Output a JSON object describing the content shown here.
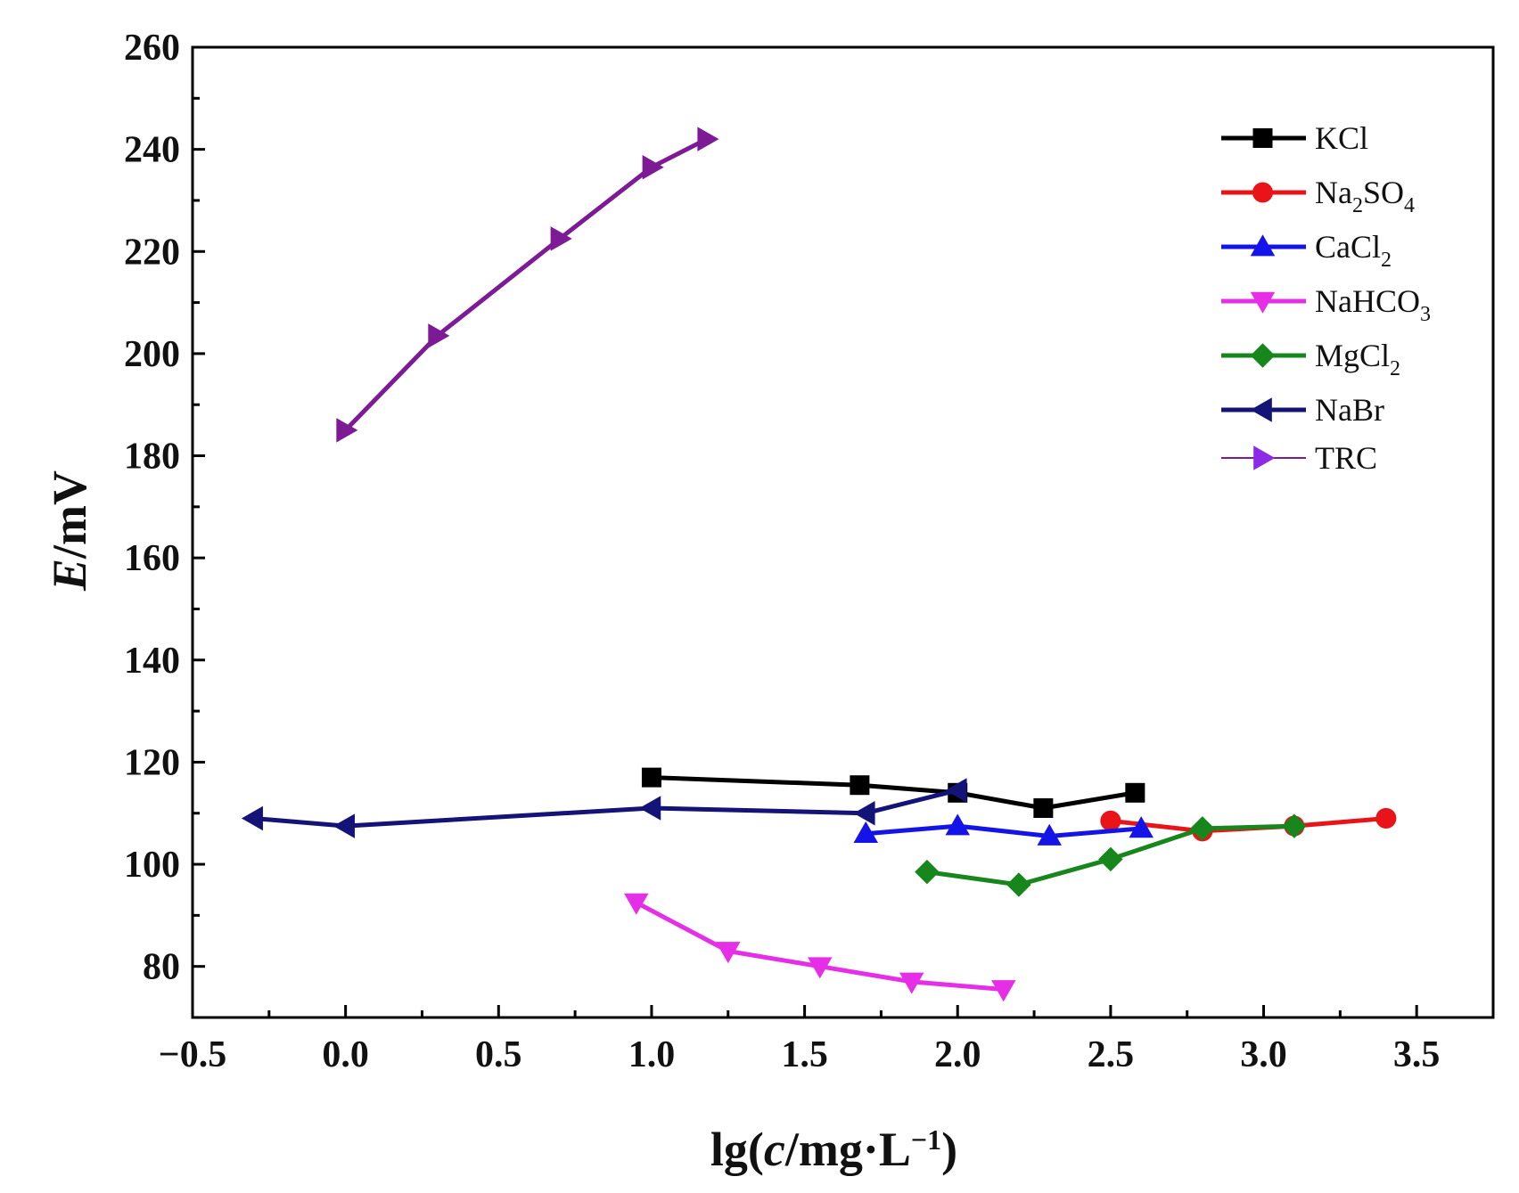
{
  "chart_data": {
    "type": "line",
    "title": "",
    "xlabel": "lg(c/mg·L⁻¹)",
    "xlabel_parts": {
      "pre": "lg(",
      "italic": "c",
      "mid": "/mg·L",
      "sup": "−1",
      "post": ")"
    },
    "ylabel": "E/mV",
    "ylabel_parts": {
      "italic": "E",
      "rest": "/mV"
    },
    "xlim": [
      -0.5,
      3.75
    ],
    "ylim": [
      70,
      260
    ],
    "xticks": [
      -0.5,
      0.0,
      0.5,
      1.0,
      1.5,
      2.0,
      2.5,
      3.0,
      3.5
    ],
    "xtick_labels": [
      "−0.5",
      "0.0",
      "0.5",
      "1.0",
      "1.5",
      "2.0",
      "2.5",
      "3.0",
      "3.5"
    ],
    "yticks": [
      80,
      100,
      120,
      140,
      160,
      180,
      200,
      220,
      240,
      260
    ],
    "ytick_labels": [
      "80",
      "100",
      "120",
      "140",
      "160",
      "180",
      "200",
      "220",
      "240",
      "260"
    ],
    "grid": false,
    "legend_position": "top-right",
    "series": [
      {
        "name": "KCl",
        "legend": {
          "base": "KCl",
          "sub": "",
          "rest": ""
        },
        "color": "#000000",
        "marker": "square",
        "x": [
          1.0,
          1.68,
          2.0,
          2.28,
          2.58
        ],
        "y": [
          117,
          115.5,
          114,
          111,
          114
        ]
      },
      {
        "name": "Na2SO4",
        "legend": {
          "base": "Na",
          "sub": "2",
          "rest": "SO",
          "sub2": "4"
        },
        "color": "#e8141a",
        "marker": "circle",
        "x": [
          2.5,
          2.8,
          3.1,
          3.4
        ],
        "y": [
          108.5,
          106.5,
          107.5,
          109
        ]
      },
      {
        "name": "CaCl2",
        "legend": {
          "base": "CaCl",
          "sub": "2",
          "rest": ""
        },
        "color": "#1414e8",
        "marker": "triangle-up",
        "x": [
          1.7,
          2.0,
          2.3,
          2.6
        ],
        "y": [
          106,
          107.5,
          105.5,
          107
        ]
      },
      {
        "name": "NaHCO3",
        "legend": {
          "base": "NaHCO",
          "sub": "3",
          "rest": ""
        },
        "color": "#e62ee6",
        "marker": "triangle-down",
        "x": [
          0.95,
          1.25,
          1.55,
          1.85,
          2.15
        ],
        "y": [
          92.5,
          83,
          80,
          77,
          75.5
        ]
      },
      {
        "name": "MgCl2",
        "legend": {
          "base": "MgCl",
          "sub": "2",
          "rest": ""
        },
        "color": "#17861d",
        "marker": "diamond",
        "x": [
          1.9,
          2.2,
          2.5,
          2.8,
          3.1
        ],
        "y": [
          98.5,
          96,
          101,
          107,
          107.5
        ]
      },
      {
        "name": "NaBr",
        "legend": {
          "base": "NaBr",
          "sub": "",
          "rest": ""
        },
        "color": "#141478",
        "marker": "triangle-left",
        "x": [
          -0.3,
          0.0,
          1.0,
          1.7,
          2.0
        ],
        "y": [
          109,
          107.5,
          111,
          110,
          114.5
        ]
      },
      {
        "name": "TRC",
        "legend": {
          "base": "TRC",
          "sub": "",
          "rest": ""
        },
        "color": "#7d1a96",
        "marker": "triangle-right",
        "legend_marker_color": "#8c2be6",
        "x": [
          0.0,
          0.3,
          0.7,
          1.0,
          1.18
        ],
        "y": [
          185,
          203.5,
          222.5,
          236.5,
          242
        ]
      }
    ]
  }
}
